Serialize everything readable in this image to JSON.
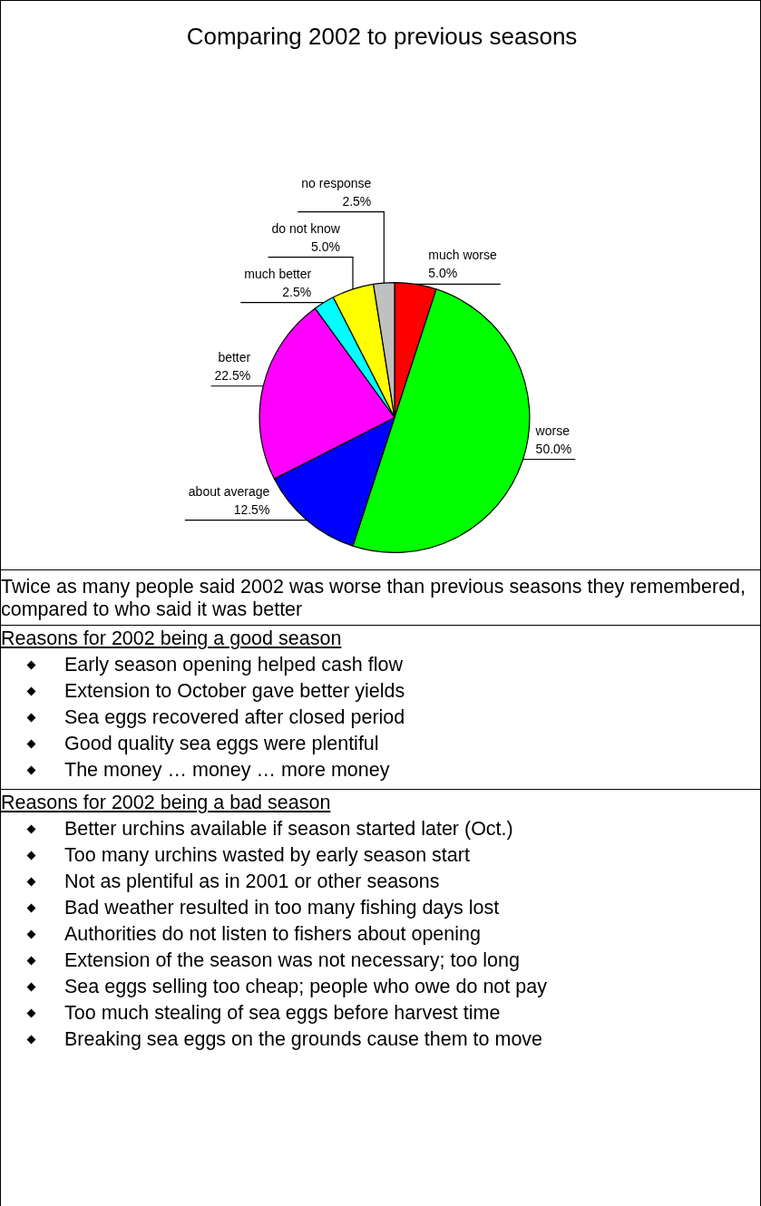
{
  "chart_data": {
    "type": "pie",
    "title": "Comparing 2002 to previous seasons",
    "categories": [
      "much worse",
      "worse",
      "about average",
      "better",
      "much better",
      "do not know",
      "no response"
    ],
    "values": [
      5,
      50,
      12.5,
      22.5,
      2.5,
      5,
      2.5
    ],
    "value_labels": [
      "5.0%",
      "50.0%",
      "12.5%",
      "22.5%",
      "2.5%",
      "5.0%",
      "2.5%"
    ],
    "colors": [
      "#ff0000",
      "#00ff00",
      "#0000ff",
      "#ff00ff",
      "#00ffff",
      "#ffff00",
      "#c0c0c0"
    ],
    "legend": false,
    "annotations": [
      "Twice as many people said 2002 was worse than previous seasons they remembered, compared to who said it was better",
      "Reasons for 2002 being a good season",
      "Early season opening helped cash flow",
      "Extension to October gave better yields",
      "Sea eggs recovered after closed period",
      "Good quality sea eggs were plentiful",
      "The money … money … more money",
      "Reasons for 2002 being a bad season",
      "Better urchins available if season started later (Oct.)",
      "Too many urchins wasted by early season start",
      "Not as plentiful as in 2001 or other seasons",
      "Bad weather resulted in too many fishing days lost",
      "Authorities do not listen to fishers about opening",
      "Extension of the season was not necessary; too long",
      "Sea eggs selling too cheap; people who owe do not pay",
      "Too much stealing of sea eggs before harvest time",
      "Breaking sea eggs on the grounds cause them to move"
    ]
  }
}
